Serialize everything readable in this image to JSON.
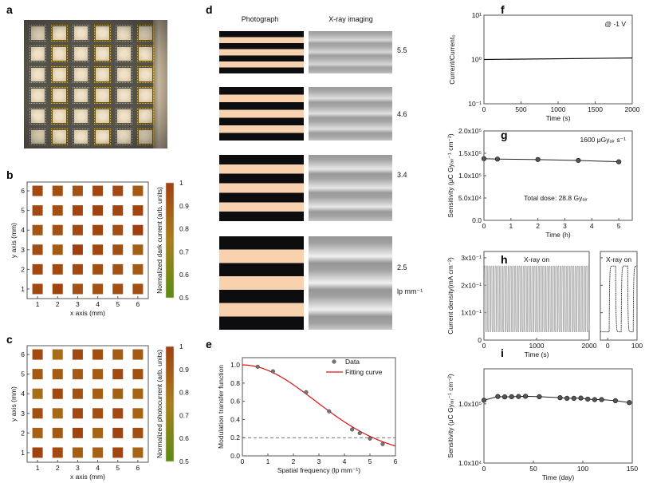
{
  "panel_labels": {
    "a": "a",
    "b": "b",
    "c": "c",
    "d": "d",
    "e": "e",
    "f": "f",
    "g": "g",
    "h": "h",
    "i": "i"
  },
  "panel_d": {
    "header_photo": "Photograph",
    "header_xray": "X-ray imaging",
    "groups": [
      {
        "label": "5.5",
        "lp_per_mm": 5.5
      },
      {
        "label": "4.6",
        "lp_per_mm": 4.6
      },
      {
        "label": "3.4",
        "lp_per_mm": 3.4
      },
      {
        "label": "2.5",
        "lp_per_mm": 2.5
      }
    ],
    "unit": "lp mm⁻¹",
    "colors": {
      "dark": "#0d0d10",
      "light": "#f8d2ae"
    }
  },
  "colormap": {
    "low": "#5b8c12",
    "mid": "#a8801c",
    "high": "#a1400f"
  },
  "chart_data": [
    {
      "panel": "b",
      "type": "heatmap",
      "xlabel": "x axis (mm)",
      "ylabel": "y axis (mm)",
      "xrange": [
        0.48,
        6.52
      ],
      "yrange": [
        0.51,
        6.45
      ],
      "xticks": [
        1,
        2,
        3,
        4,
        5,
        6
      ],
      "xtick_labels": [
        "1",
        "2",
        "3",
        "4",
        "5",
        "6"
      ],
      "yticks": [
        1,
        2,
        3,
        4,
        5,
        6
      ],
      "ytick_labels": [
        "1",
        "2",
        "3",
        "4",
        "5",
        "6"
      ],
      "colorbar": {
        "label": "Normalized dark current (arb. units)",
        "range": [
          0.5,
          1
        ],
        "ticks": [
          0.5,
          0.6,
          0.7,
          0.8,
          0.9,
          1
        ],
        "tick_labels": [
          "0.5",
          "0.6",
          "0.7",
          "0.8",
          "0.9",
          "1"
        ]
      },
      "values_rows_y1_to_y6": [
        [
          0.97,
          0.99,
          0.93,
          0.93,
          0.94,
          0.94
        ],
        [
          0.97,
          0.96,
          0.96,
          0.94,
          0.93,
          0.89
        ],
        [
          0.94,
          0.89,
          1.0,
          0.97,
          0.94,
          0.88
        ],
        [
          0.91,
          0.93,
          0.96,
          0.98,
          0.94,
          1.0
        ],
        [
          0.96,
          0.94,
          0.98,
          0.99,
          0.98,
          0.98
        ],
        [
          0.97,
          0.94,
          0.93,
          0.98,
          0.96,
          0.9
        ]
      ]
    },
    {
      "panel": "c",
      "type": "heatmap",
      "xlabel": "x axis (mm)",
      "ylabel": "y axis (mm)",
      "xrange": [
        0.48,
        6.52
      ],
      "yrange": [
        0.51,
        6.45
      ],
      "xticks": [
        1,
        2,
        3,
        4,
        5,
        6
      ],
      "xtick_labels": [
        "1",
        "2",
        "3",
        "4",
        "5",
        "6"
      ],
      "yticks": [
        1,
        2,
        3,
        4,
        5,
        6
      ],
      "ytick_labels": [
        "1",
        "2",
        "3",
        "4",
        "5",
        "6"
      ],
      "colorbar": {
        "label": "Normalized photocurrent (arb. units)",
        "range": [
          0.5,
          1
        ],
        "ticks": [
          0.5,
          0.6,
          0.7,
          0.8,
          0.9,
          1
        ],
        "tick_labels": [
          "0.5",
          "0.6",
          "0.7",
          "0.8",
          "0.9",
          "1"
        ]
      },
      "values_rows_y1_to_y6": [
        [
          0.99,
          0.96,
          0.88,
          0.87,
          0.98,
          0.85
        ],
        [
          0.87,
          0.9,
          0.99,
          0.86,
          0.99,
          0.95
        ],
        [
          0.94,
          0.84,
          0.97,
          0.94,
          0.96,
          0.86
        ],
        [
          0.82,
          0.97,
          0.93,
          0.88,
          0.88,
          0.86
        ],
        [
          0.9,
          0.89,
          0.9,
          0.89,
          0.96,
          0.94
        ],
        [
          0.96,
          0.82,
          0.97,
          0.94,
          0.89,
          0.9
        ]
      ]
    },
    {
      "panel": "e",
      "type": "scatter",
      "xlabel": "Spatial frequency (lp mm⁻¹)",
      "ylabel": "Modulation transfer function",
      "xrange": [
        0,
        6
      ],
      "yrange": [
        0,
        1.08
      ],
      "xticks": [
        0,
        1,
        2,
        3,
        4,
        5,
        6
      ],
      "xtick_labels": [
        "0",
        "1",
        "2",
        "3",
        "4",
        "5",
        "6"
      ],
      "yticks": [
        0,
        0.2,
        0.4,
        0.6,
        0.8,
        1.0
      ],
      "ytick_labels": [
        "0.0",
        "0.2",
        "0.4",
        "0.6",
        "0.8",
        "1.0"
      ],
      "series": [
        {
          "name": "Data",
          "x": [
            0.6,
            1.2,
            2.5,
            3.4,
            4.3,
            4.6,
            5.0,
            5.5
          ],
          "y": [
            0.98,
            0.93,
            0.7,
            0.49,
            0.29,
            0.25,
            0.19,
            0.13
          ]
        },
        {
          "name": "Fitting curve",
          "model": "gaussian",
          "sigma": 2.85,
          "color": "#e01010"
        }
      ],
      "reference_line_y": 0.2,
      "legend": "top-right"
    },
    {
      "panel": "f",
      "type": "line",
      "xlabel": "Time (s)",
      "ylabel": "Current/Current₀",
      "xrange": [
        0,
        2000
      ],
      "yrange": [
        0.1,
        10
      ],
      "ylog": true,
      "xticks": [
        0,
        500,
        1000,
        1500,
        2000
      ],
      "xtick_labels": [
        "0",
        "500",
        "1000",
        "1500",
        "2000"
      ],
      "yticks": [
        0.1,
        1,
        10
      ],
      "ytick_labels": [
        "10⁻¹",
        "10⁰",
        "10¹"
      ],
      "series": [
        {
          "name": "ratio",
          "x": [
            0,
            2000
          ],
          "y": [
            1.0,
            1.08
          ]
        }
      ],
      "annotation": "@ -1 V"
    },
    {
      "panel": "g",
      "type": "line",
      "xlabel": "Time (h)",
      "ylabel": "Sensitivity (μC Gyₐᵢᵣ⁻¹ cm⁻²)",
      "xrange": [
        0,
        5.5
      ],
      "yrange": [
        0,
        200000
      ],
      "xticks": [
        0,
        1,
        2,
        3,
        4,
        5
      ],
      "xtick_labels": [
        "0",
        "1",
        "2",
        "3",
        "4",
        "5"
      ],
      "yticks": [
        0,
        50000,
        100000,
        150000,
        200000
      ],
      "ytick_labels": [
        "0.0",
        "5.0x10⁴",
        "1.0x10⁵",
        "1.5x10⁵",
        "2.0x10⁵"
      ],
      "series": [
        {
          "name": "sensitivity",
          "x": [
            0,
            0.5,
            2,
            3.5,
            5
          ],
          "y": [
            138000,
            137000,
            136000,
            134000,
            131000
          ]
        }
      ],
      "annotation": "1600 μGyₐᵢᵣ s⁻¹",
      "annotation2": "Total dose: 28.8 Gyₐᵢᵣ"
    },
    {
      "panel": "h",
      "type": "line",
      "xlabel": "Time (s)",
      "ylabel": "Current density(mA cm⁻²)",
      "xrange": [
        0,
        2000
      ],
      "yrange": [
        0,
        0.323
      ],
      "xticks": [
        0,
        1000,
        2000
      ],
      "xtick_labels": [
        "0",
        "1000",
        "2000"
      ],
      "yticks": [
        0,
        0.1,
        0.2,
        0.3
      ],
      "ytick_labels": [
        "0",
        "1x10⁻¹",
        "2x10⁻¹",
        "3x10⁻¹"
      ],
      "signal": {
        "on_level": 0.27,
        "off_level": 0.03,
        "period_s": 41,
        "on_duration_s": 22,
        "first_on_s": 5
      },
      "annotation": "X-ray on"
    },
    {
      "panel": "h-inset",
      "type": "line",
      "xrange": [
        -25,
        100
      ],
      "yrange": [
        0,
        0.323
      ],
      "xticks": [
        0,
        100
      ],
      "xtick_labels": [
        "0",
        "100"
      ],
      "yticks": [
        0,
        0.1,
        0.2,
        0.3
      ],
      "signal": {
        "on_level": 0.27,
        "off_level": 0.03,
        "period_s": 41,
        "on_duration_s": 22,
        "first_on_s": 5
      },
      "annotation": "X-ray on"
    },
    {
      "panel": "i",
      "type": "line",
      "xlabel": "Time (day)",
      "ylabel": "Sensitivity (μC Gyₐᵢᵣ⁻¹ cm⁻²)",
      "xrange": [
        0,
        150
      ],
      "yrange": [
        10000,
        390000
      ],
      "ylog": true,
      "xticks": [
        0,
        50,
        100,
        150
      ],
      "xtick_labels": [
        "0",
        "50",
        "100",
        "150"
      ],
      "yticks": [
        10000,
        100000
      ],
      "ytick_labels": [
        "1.0x10⁴",
        "1.0x10⁵"
      ],
      "series": [
        {
          "name": "sensitivity",
          "x": [
            0,
            14,
            21,
            28,
            35,
            42,
            56,
            77,
            84,
            91,
            98,
            105,
            112,
            119,
            133,
            147
          ],
          "y": [
            115000,
            133000,
            131000,
            132000,
            133000,
            134000,
            132000,
            127000,
            124000,
            124000,
            125000,
            120000,
            118000,
            118000,
            113000,
            105000
          ]
        }
      ]
    }
  ]
}
